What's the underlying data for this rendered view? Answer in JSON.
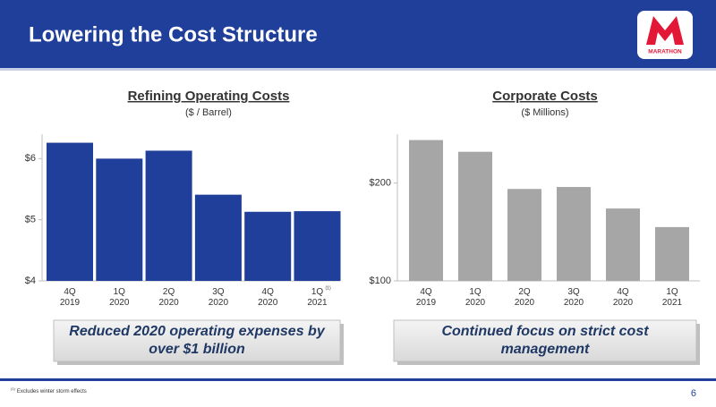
{
  "header": {
    "title": "Lowering the Cost Structure",
    "logo_text": "MARATHON"
  },
  "chart_data": [
    {
      "type": "bar",
      "title": "Refining Operating Costs",
      "subtitle": "($ / Barrel)",
      "categories": [
        "4Q 2019",
        "1Q 2020",
        "2Q 2020",
        "3Q 2020",
        "4Q 2020",
        "1Q 2021"
      ],
      "category_note": {
        "index": 5,
        "text": "(1)"
      },
      "values": [
        6.26,
        6.0,
        6.13,
        5.41,
        5.13,
        5.14
      ],
      "color": "#1f3f9b",
      "ylim": [
        4,
        6.4
      ],
      "yticks": [
        {
          "value": 4,
          "label": "$4"
        },
        {
          "value": 5,
          "label": "$5"
        },
        {
          "value": 6,
          "label": "$6"
        }
      ]
    },
    {
      "type": "bar",
      "title": "Corporate Costs",
      "subtitle": "($ Millions)",
      "categories": [
        "4Q 2019",
        "1Q 2020",
        "2Q 2020",
        "3Q 2020",
        "4Q 2020",
        "1Q 2021"
      ],
      "values": [
        244,
        232,
        194,
        196,
        174,
        155
      ],
      "color": "#a6a6a6",
      "ylim": [
        100,
        250
      ],
      "yticks": [
        {
          "value": 100,
          "label": "$100"
        },
        {
          "value": 200,
          "label": "$200"
        }
      ]
    }
  ],
  "callouts": [
    "Reduced 2020 operating expenses by over $1 billion",
    "Continued focus on strict cost management"
  ],
  "footnote": {
    "marker": "(1)",
    "text": "Excludes winter storm effects"
  },
  "page_number": "6"
}
